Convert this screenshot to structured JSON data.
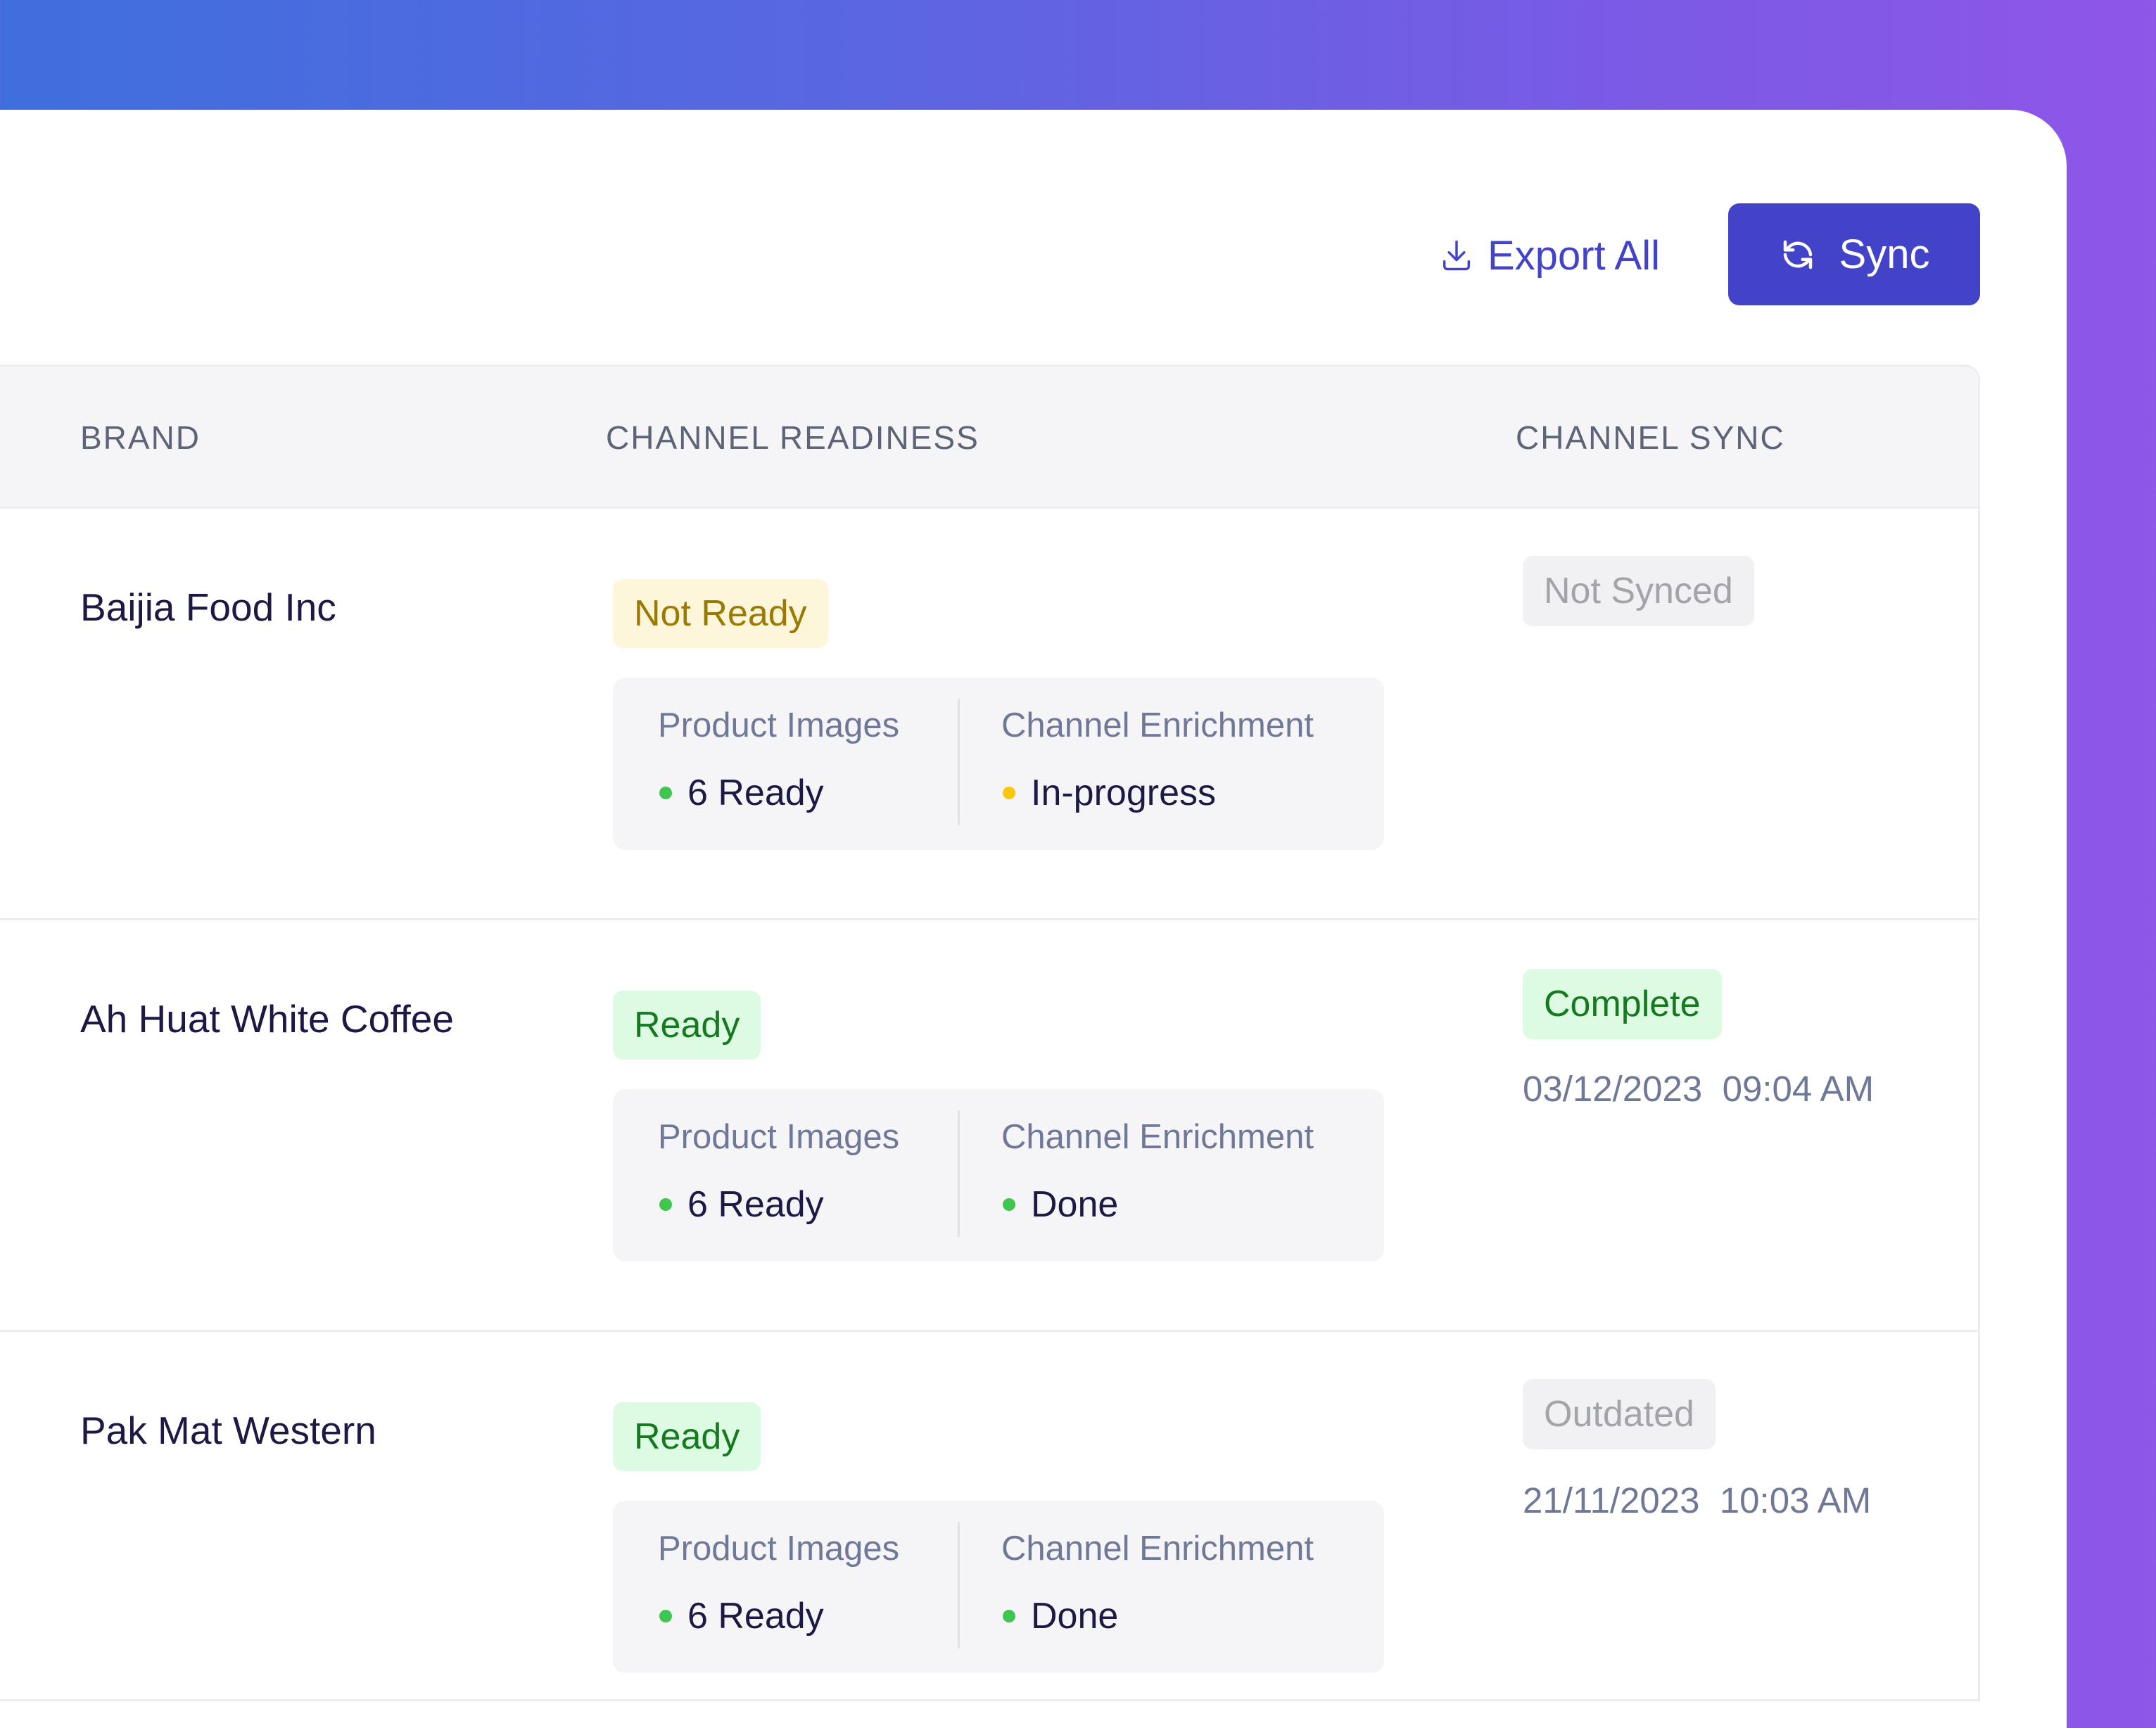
{
  "colors": {
    "accent": "#4343c9",
    "ready_dot": "#3ec64f",
    "progress_dot": "#fcc60c"
  },
  "toolbar": {
    "export_label": "Export All",
    "export_icon": "download-icon",
    "sync_label": "Sync",
    "sync_icon": "refresh-icon"
  },
  "table": {
    "headers": [
      "BRAND",
      "CHANNEL READINESS",
      "CHANNEL SYNC"
    ],
    "rows": [
      {
        "brand": "Baijia Food Inc",
        "readiness": "Not Ready",
        "images_label": "Product Images",
        "images_value": "6 Ready",
        "enrichment_label": "Channel Enrichment",
        "enrichment_value": "In-progress",
        "sync_status": "Not Synced",
        "sync_date": ""
      },
      {
        "brand": "Ah Huat White Coffee",
        "readiness": "Ready",
        "images_label": "Product Images",
        "images_value": "6 Ready",
        "enrichment_label": "Channel Enrichment",
        "enrichment_value": "Done",
        "sync_status": "Complete",
        "sync_date": "03/12/2023  09:04 AM"
      },
      {
        "brand": "Pak Mat Western",
        "readiness": "Ready",
        "images_label": "Product Images",
        "images_value": "6 Ready",
        "enrichment_label": "Channel Enrichment",
        "enrichment_value": "Done",
        "sync_status": "Outdated",
        "sync_date": "21/11/2023  10:03 AM"
      }
    ]
  }
}
